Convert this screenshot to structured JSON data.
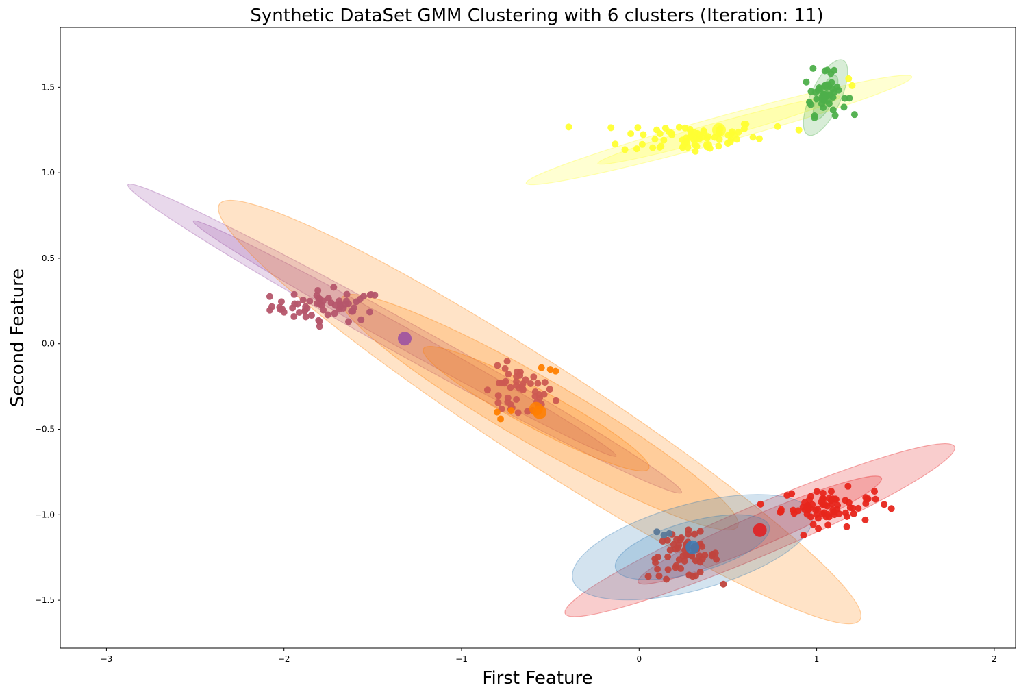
{
  "chart_data": {
    "type": "scatter",
    "title": "Synthetic DataSet GMM Clustering with 6 clusters (Iteration: 11)",
    "xlabel": "First Feature",
    "ylabel": "Second Feature",
    "xlim": [
      -3.26,
      2.12
    ],
    "ylim": [
      -1.78,
      1.85
    ],
    "xticks": [
      -3,
      -2,
      -1,
      0,
      1,
      2
    ],
    "yticks": [
      -1.5,
      -1.0,
      -0.5,
      0.0,
      0.5,
      1.0,
      1.5
    ],
    "xtick_labels": [
      "−3",
      "−2",
      "−1",
      "0",
      "1",
      "2"
    ],
    "ytick_labels": [
      "−1.5",
      "−1.0",
      "−0.5",
      "0.0",
      "0.5",
      "1.0",
      "1.5"
    ],
    "grid": false,
    "components": [
      {
        "name": "purple",
        "color": "#984ea3",
        "mean": [
          -1.32,
          0.03
        ],
        "ellipses": [
          {
            "width": 3.6,
            "height": 0.19,
            "angle_deg": -30
          },
          {
            "width": 2.75,
            "height": 0.12,
            "angle_deg": -30
          }
        ]
      },
      {
        "name": "orange-wide",
        "color": "#ff7f00",
        "mean": [
          -0.56,
          -0.4
        ],
        "ellipses": [
          {
            "width": 4.35,
            "height": 0.56,
            "angle_deg": -34
          },
          {
            "width": 2.6,
            "height": 0.38,
            "angle_deg": -31
          }
        ]
      },
      {
        "name": "orange",
        "color": "#ff7f00",
        "mean": [
          -0.58,
          -0.38
        ],
        "ellipses": [
          {
            "width": 1.45,
            "height": 0.22,
            "angle_deg": -29
          }
        ]
      },
      {
        "name": "yellow",
        "color": "#ffff33",
        "mean": [
          0.45,
          1.25
        ],
        "ellipses": [
          {
            "width": 2.26,
            "height": 0.15,
            "angle_deg": 16
          },
          {
            "width": 1.42,
            "height": 0.09,
            "angle_deg": 16
          }
        ]
      },
      {
        "name": "green",
        "color": "#4daf4a",
        "mean": [
          1.05,
          1.44
        ],
        "ellipses": [
          {
            "width": 0.48,
            "height": 0.17,
            "angle_deg": 66
          },
          {
            "width": 0.28,
            "height": 0.09,
            "angle_deg": 66
          }
        ]
      },
      {
        "name": "red",
        "color": "#e41a1c",
        "mean": [
          0.68,
          -1.09
        ],
        "ellipses": [
          {
            "width": 2.4,
            "height": 0.29,
            "angle_deg": 24
          },
          {
            "width": 1.5,
            "height": 0.18,
            "angle_deg": 24
          }
        ]
      },
      {
        "name": "blue",
        "color": "#377eb8",
        "mean": [
          0.3,
          -1.19
        ],
        "ellipses": [
          {
            "width": 1.4,
            "height": 0.5,
            "angle_deg": 16
          },
          {
            "width": 0.9,
            "height": 0.3,
            "angle_deg": 16
          }
        ]
      }
    ],
    "point_groups": [
      {
        "name": "cluster-left",
        "color": "#b5566b",
        "center": [
          -1.75,
          0.22
        ],
        "spread": [
          0.16,
          0.045
        ],
        "count": 58,
        "extra_points": [
          [
            -2.02,
            0.2
          ],
          [
            -1.72,
            0.33
          ],
          [
            -1.8,
            0.13
          ]
        ]
      },
      {
        "name": "cluster-mid",
        "color": "#cc5a52",
        "center": [
          -0.68,
          -0.29
        ],
        "spread": [
          0.1,
          0.075
        ],
        "count": 48,
        "extra_points": [
          [
            -0.8,
            -0.4
          ],
          [
            -0.78,
            -0.44
          ],
          [
            -0.55,
            -0.14
          ],
          [
            -0.5,
            -0.15
          ],
          [
            -0.47,
            -0.16
          ],
          [
            -0.72,
            -0.39
          ]
        ],
        "extra_color": "#ff7f00"
      },
      {
        "name": "cluster-yellow",
        "color": "#ffff33",
        "center": [
          0.3,
          1.21
        ],
        "spread": [
          0.2,
          0.05
        ],
        "count": 70,
        "extra_points": [
          [
            0.45,
            1.25
          ],
          [
            0.9,
            1.25
          ],
          [
            1.2,
            1.51
          ],
          [
            1.18,
            1.55
          ],
          [
            0.78,
            1.27
          ]
        ]
      },
      {
        "name": "cluster-green",
        "color": "#4daf4a",
        "center": [
          1.05,
          1.46
        ],
        "spread": [
          0.06,
          0.06
        ],
        "count": 40,
        "extra_points": [
          [
            0.98,
            1.61
          ],
          [
            1.06,
            1.6
          ],
          [
            1.08,
            1.58
          ]
        ]
      },
      {
        "name": "cluster-red",
        "color": "#e7261c",
        "center": [
          1.06,
          -0.95
        ],
        "spread": [
          0.13,
          0.05
        ],
        "count": 70,
        "extra_points": [
          [
            1.38,
            -0.94
          ],
          [
            1.28,
            -0.91
          ],
          [
            1.17,
            -1.07
          ],
          [
            0.8,
            -0.98
          ]
        ]
      },
      {
        "name": "cluster-bottom",
        "color": "#c0443e",
        "center": [
          0.25,
          -1.24
        ],
        "spread": [
          0.1,
          0.065
        ],
        "count": 60,
        "extra_points": [
          [
            0.1,
            -1.1
          ],
          [
            0.14,
            -1.12
          ],
          [
            0.17,
            -1.11
          ]
        ],
        "extra_color": "#5a7898"
      }
    ]
  }
}
